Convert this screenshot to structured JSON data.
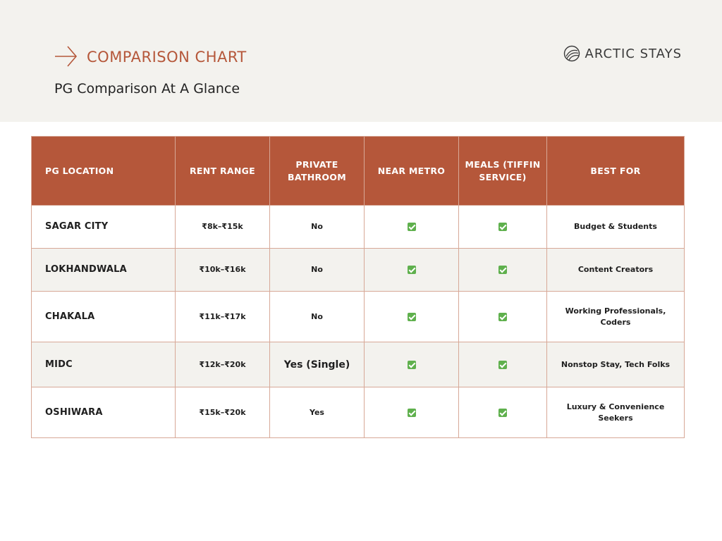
{
  "header": {
    "kicker": "COMPARISON CHART",
    "subtitle": "PG Comparison At A Glance",
    "brand": "ARCTIC STAYS",
    "icons": {
      "kicker": "arrow-right-icon",
      "brand": "arctic-stays-logo-icon"
    },
    "colors": {
      "accent": "#b5573a",
      "band": "#f3f2ee"
    }
  },
  "table": {
    "columns": [
      "PG LOCATION",
      "RENT RANGE",
      "PRIVATE BATHROOM",
      "NEAR METRO",
      "MEALS (TIFFIN SERVICE)",
      "BEST FOR"
    ],
    "rows": [
      {
        "location": "SAGAR CITY",
        "rent": "₹8k–₹15k",
        "bathroom": "No",
        "metro": "✅",
        "meals": "✅",
        "best_for": "Budget & Students"
      },
      {
        "location": "LOKHANDWALA",
        "rent": "₹10k–₹16k",
        "bathroom": "No",
        "metro": "✅",
        "meals": "✅",
        "best_for": "Content Creators"
      },
      {
        "location": "CHAKALA",
        "rent": "₹11k–₹17k",
        "bathroom": "No",
        "metro": "✅",
        "meals": "✅",
        "best_for": "Working Professionals, Coders"
      },
      {
        "location": "MIDC",
        "rent": "₹12k–₹20k",
        "bathroom": "Yes (Single)",
        "metro": "✅",
        "meals": "✅",
        "best_for": "Nonstop Stay, Tech Folks"
      },
      {
        "location": "OSHIWARA",
        "rent": "₹15k–₹20k",
        "bathroom": "Yes",
        "metro": "✅",
        "meals": "✅",
        "best_for": "Luxury & Convenience Seekers"
      }
    ],
    "header_color": "#b5573a",
    "check_color": "#5fb04d"
  }
}
